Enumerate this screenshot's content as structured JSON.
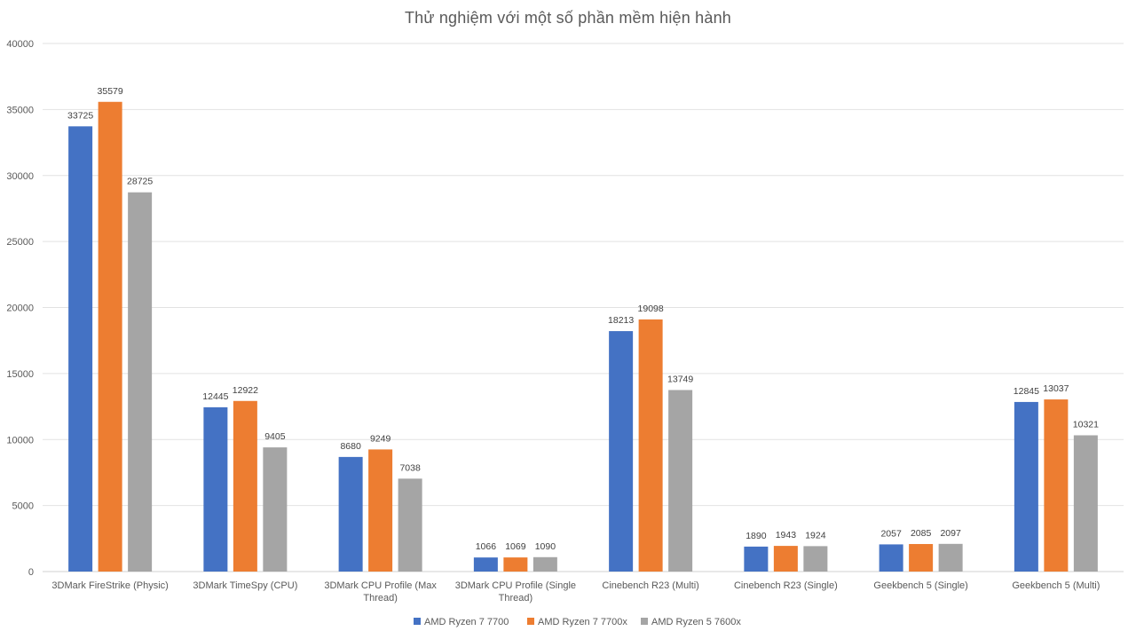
{
  "chart_data": {
    "type": "bar",
    "title": "Thử nghiệm với một số phần mềm hiện hành",
    "xlabel": "",
    "ylabel": "",
    "ylim": [
      0,
      40000
    ],
    "yticks": [
      0,
      5000,
      10000,
      15000,
      20000,
      25000,
      30000,
      35000,
      40000
    ],
    "grid": true,
    "legend_position": "bottom",
    "categories": [
      [
        "3DMark FireStrike (Physic)"
      ],
      [
        "3DMark TimeSpy (CPU)"
      ],
      [
        "3DMark CPU Profile (Max",
        "Thread)"
      ],
      [
        "3DMark CPU Profile (Single",
        "Thread)"
      ],
      [
        "Cinebench R23 (Multi)"
      ],
      [
        "Cinebench R23 (Single)"
      ],
      [
        "Geekbench 5 (Single)"
      ],
      [
        "Geekbench 5 (Multi)"
      ]
    ],
    "series": [
      {
        "name": "AMD Ryzen 7 7700",
        "color": "#4472C4",
        "values": [
          33725,
          12445,
          8680,
          1066,
          18213,
          1890,
          2057,
          12845
        ]
      },
      {
        "name": "AMD Ryzen 7 7700x",
        "color": "#ED7D31",
        "values": [
          35579,
          12922,
          9249,
          1069,
          19098,
          1943,
          2085,
          13037
        ]
      },
      {
        "name": "AMD Ryzen 5 7600x",
        "color": "#A5A5A5",
        "values": [
          28725,
          9405,
          7038,
          1090,
          13749,
          1924,
          2097,
          10321
        ]
      }
    ]
  }
}
